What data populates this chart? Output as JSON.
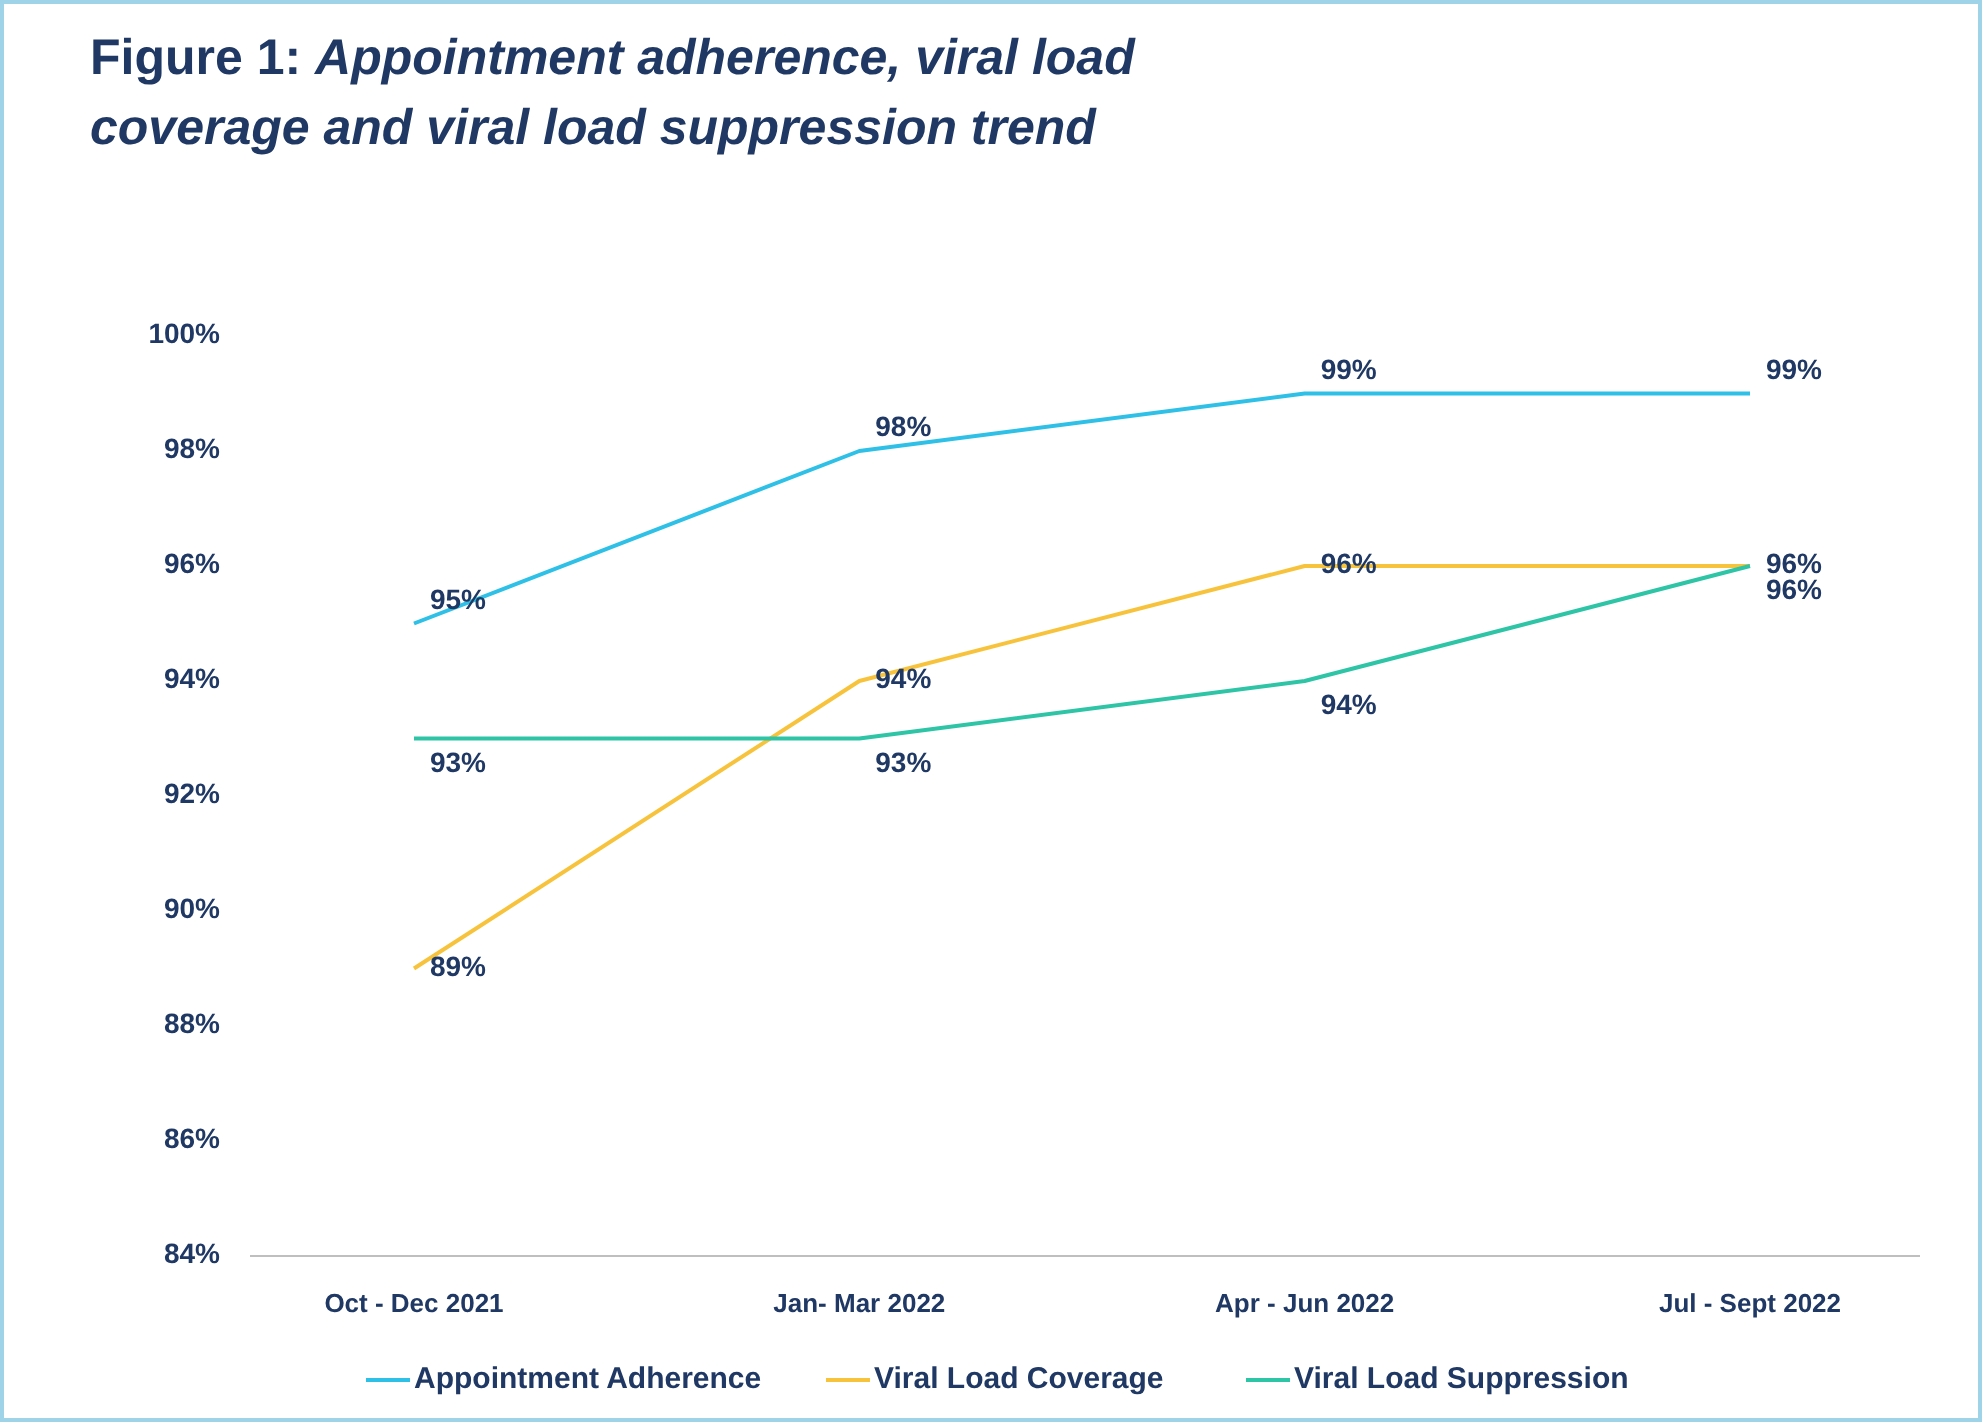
{
  "chart_data": {
    "type": "line",
    "title": "Figure 1: Appointment adherence, viral load coverage and viral load suppression trend",
    "categories": [
      "Oct - Dec 2021",
      "Jan- Mar 2022",
      "Apr - Jun 2022",
      "Jul - Sept 2022"
    ],
    "series": [
      {
        "name": "Appointment Adherence",
        "color": "#2ec0e6",
        "values": [
          95,
          98,
          99,
          99
        ],
        "value_labels": [
          "95%",
          "98%",
          "99%",
          "99%"
        ]
      },
      {
        "name": "Viral Load Coverage",
        "color": "#f8c33c",
        "values": [
          89,
          94,
          96,
          96
        ],
        "value_labels": [
          "89%",
          "94%",
          "96%",
          "96%"
        ]
      },
      {
        "name": "Viral Load Suppression",
        "color": "#2ec4a6",
        "values": [
          93,
          93,
          94,
          96
        ],
        "value_labels": [
          "93%",
          "93%",
          "94%",
          "96%"
        ]
      }
    ],
    "ylim": [
      84,
      100
    ],
    "yticks": [
      {
        "value": 84,
        "label": "84%"
      },
      {
        "value": 86,
        "label": "86%"
      },
      {
        "value": 88,
        "label": "88%"
      },
      {
        "value": 90,
        "label": "90%"
      },
      {
        "value": 92,
        "label": "92%"
      },
      {
        "value": 94,
        "label": "94%"
      },
      {
        "value": 96,
        "label": "96%"
      },
      {
        "value": 98,
        "label": "98%"
      },
      {
        "value": 100,
        "label": "100%"
      }
    ],
    "grid": false,
    "legend": "bottom",
    "marker": "none",
    "line_style": "solid"
  }
}
